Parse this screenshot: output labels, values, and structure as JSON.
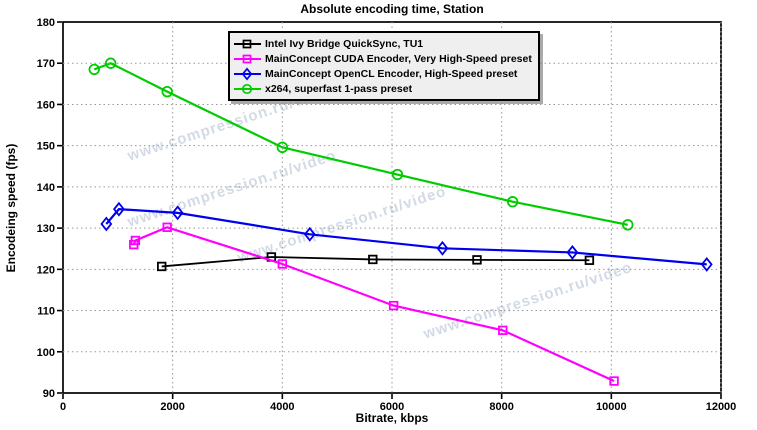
{
  "watermark": {
    "text": "www.compression.ru/video"
  },
  "colors": {
    "background": "#ffffff",
    "axis": "#000000",
    "grid": "#999999",
    "legend_bg": "#efefef",
    "legend_border": "#000000",
    "watermark": "#aebdd0"
  },
  "chart_data": {
    "type": "line",
    "title": "Absolute encoding time, Station",
    "xlabel": "Bitrate, kbps",
    "ylabel": "Encodeing speed (fps)",
    "xlim": [
      0,
      12000
    ],
    "ylim": [
      90,
      180
    ],
    "xticks": [
      0,
      2000,
      4000,
      6000,
      8000,
      10000,
      12000
    ],
    "yticks": [
      90,
      100,
      110,
      120,
      130,
      140,
      150,
      160,
      170,
      180
    ],
    "grid": true,
    "grid_style": "dotted",
    "legend_position": "top-center",
    "series": [
      {
        "name": "Intel Ivy Bridge QuickSync, TU1",
        "color": "#000000",
        "marker": "square",
        "x": [
          1800,
          3800,
          5650,
          7550,
          9600
        ],
        "y": [
          120.7,
          123.0,
          122.4,
          122.3,
          122.2
        ]
      },
      {
        "name": "MainConcept CUDA Encoder, Very High-Speed preset",
        "color": "#ff00ff",
        "marker": "square",
        "x": [
          1290,
          1320,
          1900,
          4000,
          6030,
          8020,
          10050
        ],
        "y": [
          126.0,
          127.0,
          130.2,
          121.3,
          111.2,
          105.2,
          92.9
        ]
      },
      {
        "name": "MainConcept OpenCL Encoder, High-Speed preset",
        "color": "#0000ee",
        "marker": "diamond",
        "x": [
          790,
          1020,
          2090,
          4500,
          6920,
          9290,
          11740
        ],
        "y": [
          131.0,
          134.6,
          133.7,
          128.5,
          125.1,
          124.1,
          121.2
        ]
      },
      {
        "name": "x264, superfast 1-pass preset",
        "color": "#00cc00",
        "marker": "circle",
        "x": [
          570,
          870,
          1900,
          4000,
          6100,
          8200,
          10300
        ],
        "y": [
          168.5,
          170.0,
          163.1,
          149.6,
          143.0,
          136.4,
          130.8
        ]
      }
    ]
  }
}
